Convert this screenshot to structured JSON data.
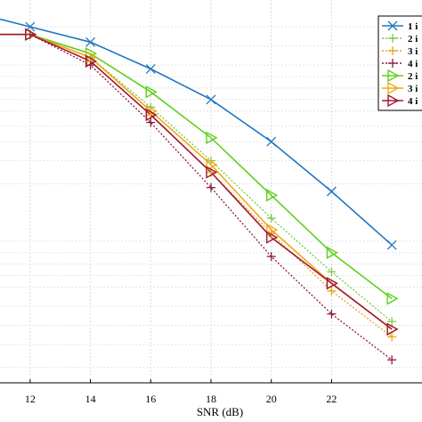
{
  "chart_data": {
    "type": "line",
    "xlabel": "SNR (dB)",
    "xlim": [
      11,
      25
    ],
    "ylim": [
      0,
      1
    ],
    "y_scale": "log",
    "grid": true,
    "legend_position": "top-right",
    "x_ticks": [
      12,
      14,
      16,
      18,
      20,
      22
    ],
    "series": [
      {
        "name": "1 i",
        "color": "#1f77c4",
        "marker": "x",
        "line": "solid",
        "x": [
          11,
          12,
          14,
          16,
          18,
          20,
          22,
          24
        ],
        "y": [
          0.95,
          0.93,
          0.89,
          0.82,
          0.74,
          0.63,
          0.5,
          0.36
        ]
      },
      {
        "name": "2 i",
        "color": "#7ac943",
        "marker": "plus",
        "line": "dotted",
        "x": [
          11,
          12,
          14,
          16,
          18,
          20,
          22,
          24
        ],
        "y": [
          0.91,
          0.91,
          0.85,
          0.72,
          0.58,
          0.43,
          0.29,
          0.16
        ]
      },
      {
        "name": "3 i",
        "color": "#e9a21c",
        "marker": "plus",
        "line": "dotted",
        "x": [
          11,
          12,
          14,
          16,
          18,
          20,
          22,
          24
        ],
        "y": [
          0.91,
          0.91,
          0.84,
          0.7,
          0.55,
          0.39,
          0.24,
          0.12
        ]
      },
      {
        "name": "4 i",
        "color": "#8b1a3a",
        "marker": "plus",
        "line": "dotted",
        "x": [
          11,
          12,
          14,
          16,
          18,
          20,
          22,
          24
        ],
        "y": [
          0.91,
          0.91,
          0.83,
          0.68,
          0.51,
          0.33,
          0.18,
          0.06
        ]
      },
      {
        "name": "2 i",
        "color": "#5fcf1e",
        "marker": "triangle-right",
        "line": "solid",
        "x": [
          11,
          12,
          14,
          16,
          18,
          20,
          22,
          24
        ],
        "y": [
          0.91,
          0.91,
          0.86,
          0.76,
          0.64,
          0.49,
          0.34,
          0.22
        ]
      },
      {
        "name": "3 i",
        "color": "#f0a91a",
        "marker": "triangle-right",
        "line": "solid",
        "x": [
          11,
          12,
          14,
          16,
          18,
          20,
          22,
          24
        ],
        "y": [
          0.91,
          0.91,
          0.85,
          0.71,
          0.57,
          0.4,
          0.26,
          0.14
        ]
      },
      {
        "name": "4 i",
        "color": "#a0182c",
        "marker": "triangle-right",
        "line": "solid",
        "x": [
          11,
          12,
          14,
          16,
          18,
          20,
          22,
          24
        ],
        "y": [
          0.91,
          0.91,
          0.84,
          0.7,
          0.55,
          0.38,
          0.26,
          0.14
        ]
      }
    ]
  }
}
